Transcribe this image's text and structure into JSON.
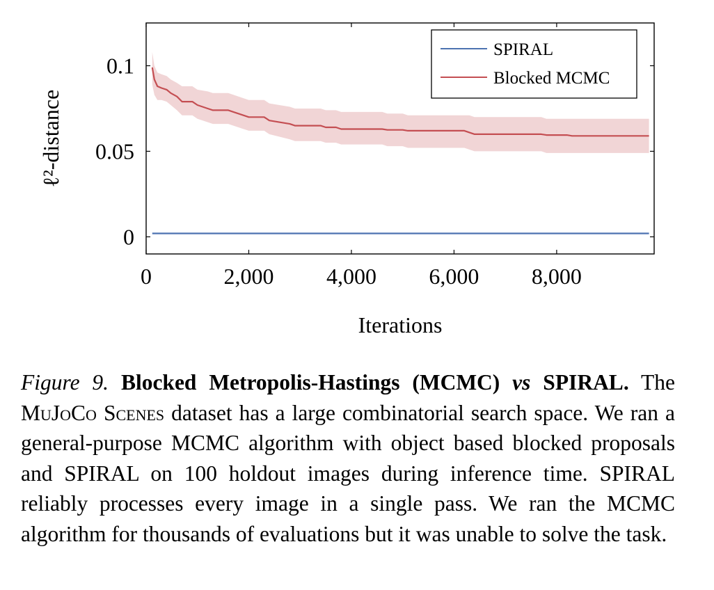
{
  "chart_data": {
    "type": "line",
    "xlabel": "Iterations",
    "ylabel": "ℓ²-distance",
    "xlim": [
      0,
      9900
    ],
    "ylim": [
      -0.01,
      0.125
    ],
    "x_ticks": [
      0,
      2000,
      4000,
      6000,
      8000
    ],
    "x_tick_labels": [
      "0",
      "2,000",
      "4,000",
      "6,000",
      "8,000"
    ],
    "y_ticks": [
      0,
      0.05,
      0.1
    ],
    "y_tick_labels": [
      "0",
      "0.05",
      "0.1"
    ],
    "grid": false,
    "legend_position": "top-right",
    "series": [
      {
        "name": "SPIRAL",
        "color": "#4c72b0",
        "x": [
          120,
          9800
        ],
        "y": [
          0.002,
          0.002
        ]
      },
      {
        "name": "Blocked MCMC",
        "color": "#c44e52",
        "band_color": "#e8b9bb",
        "x": [
          120,
          160,
          220,
          300,
          400,
          480,
          600,
          700,
          900,
          1000,
          1200,
          1300,
          1600,
          1700,
          1900,
          2000,
          2300,
          2400,
          2800,
          2900,
          3400,
          3500,
          3700,
          3800,
          4600,
          4700,
          5000,
          5100,
          6200,
          6300,
          6400,
          7700,
          7800,
          8200,
          8300,
          9800
        ],
        "y": [
          0.099,
          0.092,
          0.088,
          0.087,
          0.086,
          0.084,
          0.082,
          0.079,
          0.079,
          0.077,
          0.075,
          0.074,
          0.074,
          0.073,
          0.071,
          0.07,
          0.07,
          0.068,
          0.066,
          0.065,
          0.065,
          0.064,
          0.064,
          0.063,
          0.063,
          0.0625,
          0.0625,
          0.062,
          0.062,
          0.061,
          0.06,
          0.06,
          0.0595,
          0.0595,
          0.059,
          0.059
        ],
        "upper": [
          0.108,
          0.1,
          0.096,
          0.095,
          0.094,
          0.092,
          0.09,
          0.088,
          0.088,
          0.086,
          0.085,
          0.084,
          0.084,
          0.083,
          0.081,
          0.08,
          0.08,
          0.078,
          0.076,
          0.075,
          0.075,
          0.074,
          0.074,
          0.073,
          0.073,
          0.072,
          0.072,
          0.071,
          0.071,
          0.071,
          0.07,
          0.07,
          0.069,
          0.069,
          0.069,
          0.069
        ],
        "lower": [
          0.089,
          0.083,
          0.08,
          0.08,
          0.079,
          0.077,
          0.074,
          0.071,
          0.071,
          0.069,
          0.067,
          0.066,
          0.066,
          0.065,
          0.063,
          0.062,
          0.062,
          0.06,
          0.057,
          0.056,
          0.056,
          0.055,
          0.055,
          0.054,
          0.054,
          0.053,
          0.053,
          0.052,
          0.052,
          0.051,
          0.05,
          0.05,
          0.049,
          0.049,
          0.049,
          0.049
        ]
      }
    ]
  },
  "caption": {
    "fig_label": "Figure 9.",
    "title_a": "Blocked Metropolis-Hastings (MCMC)",
    "title_vs": "vs",
    "title_b": "SPIRAL.",
    "text_1": "The ",
    "dataset": "MuJoCo Scenes",
    "text_2": " dataset has a large combinatorial search space. We ran a general-purpose MCMC algorithm with object based blocked proposals and SPIRAL on 100 holdout images during inference time. SPIRAL reliably processes every image in a single pass. We ran the MCMC algorithm for thousands of evaluations but it was unable to solve the task."
  }
}
